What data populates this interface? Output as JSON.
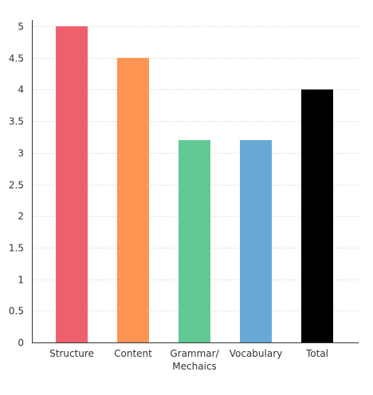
{
  "chart_data": {
    "type": "bar",
    "categories": [
      "Structure",
      "Content",
      "Grammar/\nMechaics",
      "Vocabulary",
      "Total"
    ],
    "values": [
      5,
      4.5,
      3.2,
      3.2,
      4
    ],
    "colors": [
      "#ef606d",
      "#fe9451",
      "#60c994",
      "#68a8d6",
      "#000000"
    ],
    "ylim": [
      0,
      5
    ],
    "yticks": [
      "0",
      "0.5",
      "1",
      "1.5",
      "2",
      "2.5",
      "3",
      "3.5",
      "4",
      "4.5",
      "5"
    ],
    "grid": true,
    "grid_style": "dotted",
    "title": "",
    "xlabel": "",
    "ylabel": ""
  }
}
